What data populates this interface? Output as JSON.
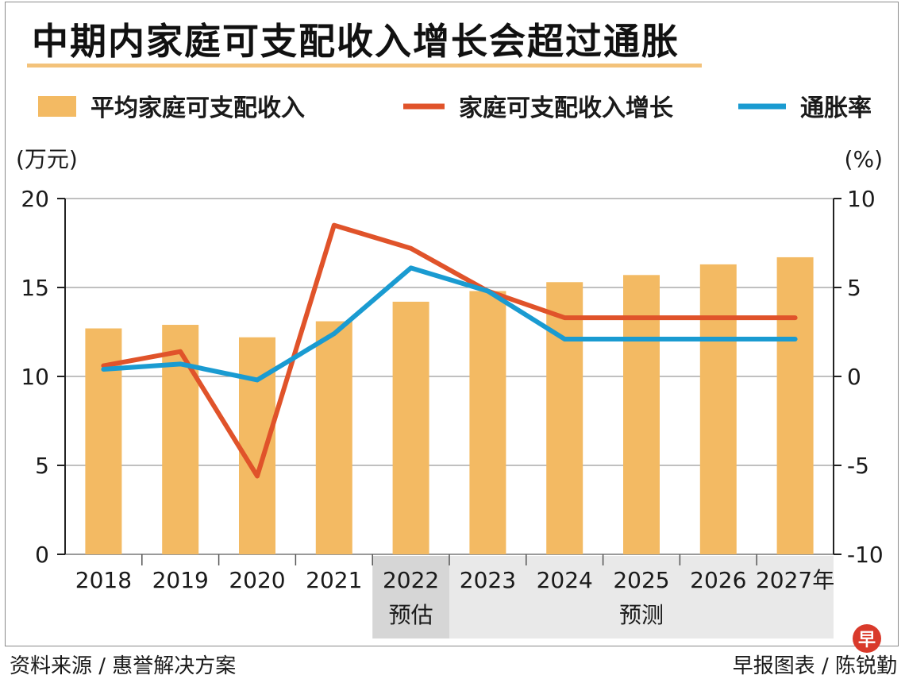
{
  "title": "中期内家庭可支配收入增长会超过通胀",
  "source_left": "资料来源 / 惠誉解决方案",
  "source_right": "早报图表 / 陈锐勤",
  "logo_text": "早",
  "colors": {
    "bar": "#f3ba63",
    "income_growth": "#e0532a",
    "inflation": "#1a9bd1",
    "band": "#e6e6e6",
    "grid": "#9a9a9a"
  },
  "chart_data": {
    "type": "bar+line",
    "title": "中期内家庭可支配收入增长会超过通胀",
    "categories": [
      "2018",
      "2019",
      "2020",
      "2021",
      "2022",
      "2023",
      "2024",
      "2025",
      "2026",
      "2027年"
    ],
    "bands": [
      {
        "label": "预估",
        "from": "2022",
        "to": "2022"
      },
      {
        "label": "预测",
        "from": "2023",
        "to": "2027年"
      }
    ],
    "left_axis": {
      "unit": "(万元)",
      "min": 0,
      "max": 20,
      "ticks": [
        "0",
        "5",
        "10",
        "15",
        "20"
      ],
      "tick_values": [
        0,
        5,
        10,
        15,
        20
      ]
    },
    "right_axis": {
      "unit": "(%)",
      "min": -10,
      "max": 10,
      "ticks": [
        "-10",
        "-5",
        "0",
        "5",
        "10"
      ],
      "tick_values": [
        -10,
        -5,
        0,
        5,
        10
      ]
    },
    "series": [
      {
        "name": "平均家庭可支配收入",
        "kind": "bar",
        "axis": "left",
        "values": [
          12.7,
          12.9,
          12.2,
          13.1,
          14.2,
          14.8,
          15.3,
          15.7,
          16.3,
          16.7
        ]
      },
      {
        "name": "家庭可支配收入增长",
        "kind": "line",
        "axis": "right",
        "values": [
          0.6,
          1.4,
          -5.6,
          8.5,
          7.2,
          4.8,
          3.3,
          3.3,
          3.3,
          3.3
        ]
      },
      {
        "name": "通胀率",
        "kind": "line",
        "axis": "right",
        "values": [
          0.4,
          0.7,
          -0.2,
          2.4,
          6.1,
          4.8,
          2.1,
          2.1,
          2.1,
          2.1
        ]
      }
    ]
  }
}
